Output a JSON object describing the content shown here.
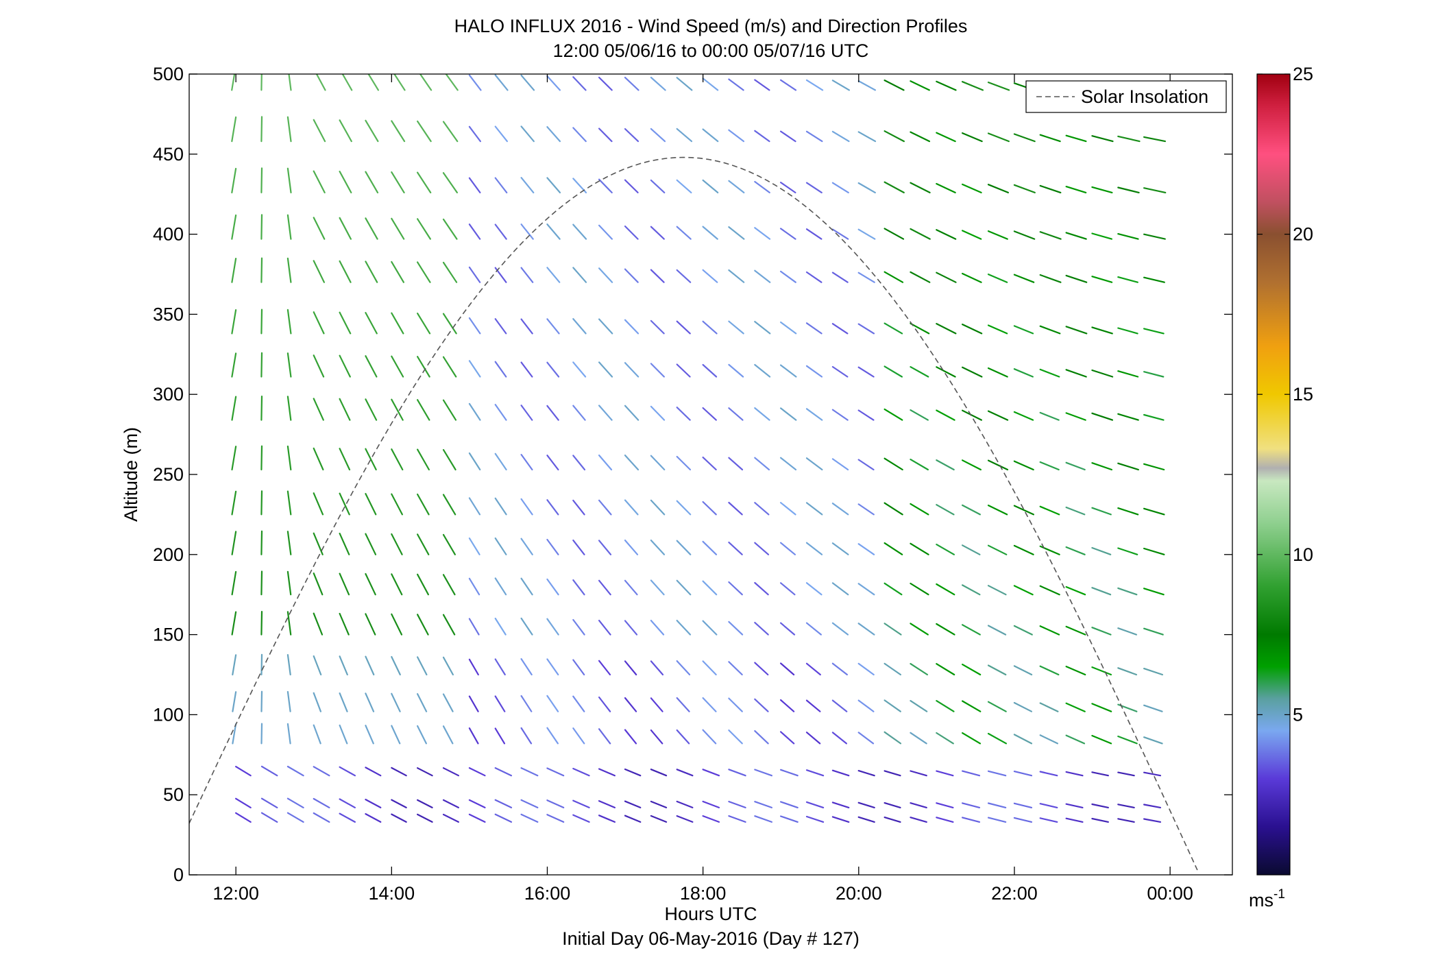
{
  "chart_data": {
    "type": "wind-barb-profile",
    "title": "HALO INFLUX 2016 - Wind Speed (m/s) and Direction Profiles",
    "subtitle": "12:00 05/06/16 to 00:00 05/07/16  UTC",
    "xlabel": "Hours UTC",
    "xlabel2": "Initial Day 06-May-2016 (Day # 127)",
    "ylabel": "Altitude (m)",
    "xlim": [
      11.4,
      24.8
    ],
    "ylim": [
      0,
      500
    ],
    "x_ticks": [
      {
        "value": 12,
        "label": "12:00"
      },
      {
        "value": 14,
        "label": "14:00"
      },
      {
        "value": 16,
        "label": "16:00"
      },
      {
        "value": 18,
        "label": "18:00"
      },
      {
        "value": 20,
        "label": "20:00"
      },
      {
        "value": 22,
        "label": "22:00"
      },
      {
        "value": 24,
        "label": "00:00"
      }
    ],
    "y_ticks": [
      {
        "value": 0,
        "label": "0"
      },
      {
        "value": 50,
        "label": "50"
      },
      {
        "value": 100,
        "label": "100"
      },
      {
        "value": 150,
        "label": "150"
      },
      {
        "value": 200,
        "label": "200"
      },
      {
        "value": 250,
        "label": "250"
      },
      {
        "value": 300,
        "label": "300"
      },
      {
        "value": 350,
        "label": "350"
      },
      {
        "value": 400,
        "label": "400"
      },
      {
        "value": 450,
        "label": "450"
      },
      {
        "value": 500,
        "label": "500"
      }
    ],
    "legend": {
      "label": "Solar Insolation",
      "placement": "top-right",
      "style": "dashed",
      "color": "#555555"
    },
    "solar_insolation": {
      "peak_time": 17.75,
      "peak_altitude": 448,
      "start_time": 11.35,
      "start_altitude": 27,
      "end_time": 24.35,
      "end_altitude": 3
    },
    "wind": {
      "times_start": 12.0,
      "times_step": 0.3333,
      "count": 36,
      "altitudes": [
        33,
        42,
        62,
        82,
        102,
        125,
        150,
        175,
        200,
        225,
        253,
        284,
        311,
        338,
        370,
        397,
        426,
        458,
        490
      ],
      "speed_range_ms": [
        0.5,
        25
      ]
    },
    "colorbar": {
      "min": 0,
      "max": 25,
      "ticks": [
        {
          "value": 5,
          "label": "5"
        },
        {
          "value": 10,
          "label": "10"
        },
        {
          "value": 15,
          "label": "15"
        },
        {
          "value": 20,
          "label": "20"
        },
        {
          "value": 25,
          "label": "25"
        }
      ],
      "unit_label": "ms",
      "unit_exp": "-1",
      "stops": [
        {
          "v": 0,
          "c": "#0a0a30"
        },
        {
          "v": 1.5,
          "c": "#2a1090"
        },
        {
          "v": 3,
          "c": "#5a3ad8"
        },
        {
          "v": 4.5,
          "c": "#7aa8f0"
        },
        {
          "v": 5.5,
          "c": "#5aa0a0"
        },
        {
          "v": 6.5,
          "c": "#00a000"
        },
        {
          "v": 7.5,
          "c": "#007a00"
        },
        {
          "v": 9,
          "c": "#30a030"
        },
        {
          "v": 11,
          "c": "#90d090"
        },
        {
          "v": 12.3,
          "c": "#c8e8c0"
        },
        {
          "v": 12.7,
          "c": "#b0b0b0"
        },
        {
          "v": 13.3,
          "c": "#f0e080"
        },
        {
          "v": 15,
          "c": "#f0c800"
        },
        {
          "v": 16.5,
          "c": "#f0a010"
        },
        {
          "v": 18.5,
          "c": "#b07030"
        },
        {
          "v": 20,
          "c": "#8a5030"
        },
        {
          "v": 21,
          "c": "#c05060"
        },
        {
          "v": 22.5,
          "c": "#ff5080"
        },
        {
          "v": 24,
          "c": "#d02040"
        },
        {
          "v": 25,
          "c": "#a00010"
        }
      ]
    }
  }
}
